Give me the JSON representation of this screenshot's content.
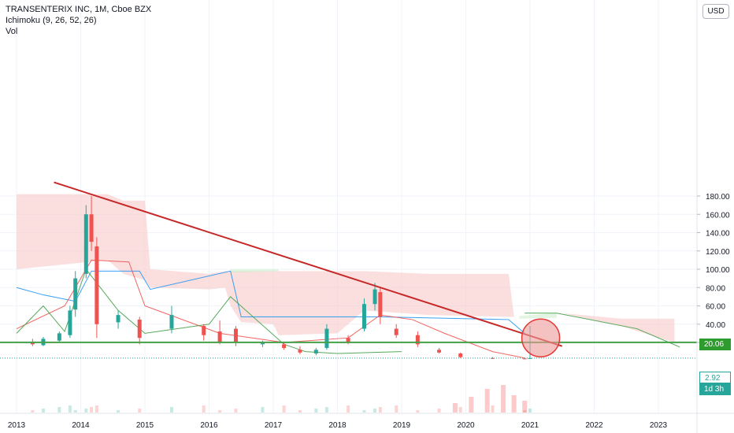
{
  "header": {
    "symbol_line": "TRANSENTERIX INC, 1M, Cboe BZX",
    "indicator_line": "Ichimoku (9, 26, 52, 26)",
    "volume_line": "Vol"
  },
  "currency_button": "USD",
  "price_tags": {
    "horizontal_line": "20.06",
    "last_price": "2.92",
    "countdown": "1d 3h"
  },
  "colors": {
    "up": "#26a69a",
    "down": "#ef5350",
    "conversion_line": "#2196f3",
    "base_line": "#ef5350",
    "lagging_span": "#43a047",
    "cloud_bear": "#f7c5c5",
    "cloud_bull": "#c8ecc8",
    "trendline": "#c62828",
    "support_line": "#43a047",
    "circle": "#ef9a9a"
  },
  "chart_data": {
    "type": "candlestick",
    "interval": "1M",
    "ylim": [
      0,
      200
    ],
    "y_ticks": [
      "180.00",
      "160.00",
      "140.00",
      "120.00",
      "100.00",
      "80.00",
      "60.00",
      "40.00",
      "20.00"
    ],
    "x_ticks": [
      "2013",
      "2014",
      "2015",
      "2016",
      "2017",
      "2018",
      "2019",
      "2020",
      "2021",
      "2022",
      "2023"
    ],
    "candles": [
      {
        "date": "2013-04",
        "o": 20,
        "h": 24,
        "l": 16,
        "c": 18
      },
      {
        "date": "2013-06",
        "o": 17,
        "h": 26,
        "l": 16,
        "c": 24
      },
      {
        "date": "2013-09",
        "o": 22,
        "h": 32,
        "l": 20,
        "c": 30
      },
      {
        "date": "2013-11",
        "o": 28,
        "h": 60,
        "l": 25,
        "c": 55
      },
      {
        "date": "2013-12",
        "o": 56,
        "h": 98,
        "l": 48,
        "c": 90
      },
      {
        "date": "2014-02",
        "o": 95,
        "h": 170,
        "l": 90,
        "c": 160
      },
      {
        "date": "2014-03",
        "o": 160,
        "h": 180,
        "l": 120,
        "c": 130
      },
      {
        "date": "2014-04",
        "o": 125,
        "h": 135,
        "l": 25,
        "c": 40
      },
      {
        "date": "2014-08",
        "o": 42,
        "h": 55,
        "l": 35,
        "c": 50
      },
      {
        "date": "2014-12",
        "o": 45,
        "h": 48,
        "l": 18,
        "c": 25
      },
      {
        "date": "2015-06",
        "o": 35,
        "h": 60,
        "l": 30,
        "c": 50
      },
      {
        "date": "2015-12",
        "o": 38,
        "h": 40,
        "l": 22,
        "c": 28
      },
      {
        "date": "2016-03",
        "o": 32,
        "h": 44,
        "l": 18,
        "c": 20
      },
      {
        "date": "2016-06",
        "o": 35,
        "h": 38,
        "l": 16,
        "c": 20
      },
      {
        "date": "2016-11",
        "o": 18,
        "h": 22,
        "l": 15,
        "c": 20
      },
      {
        "date": "2017-03",
        "o": 18,
        "h": 20,
        "l": 12,
        "c": 14
      },
      {
        "date": "2017-06",
        "o": 12,
        "h": 16,
        "l": 7,
        "c": 9
      },
      {
        "date": "2017-09",
        "o": 8,
        "h": 14,
        "l": 6,
        "c": 12
      },
      {
        "date": "2017-11",
        "o": 14,
        "h": 40,
        "l": 12,
        "c": 35
      },
      {
        "date": "2018-03",
        "o": 25,
        "h": 28,
        "l": 18,
        "c": 20
      },
      {
        "date": "2018-06",
        "o": 35,
        "h": 68,
        "l": 32,
        "c": 62
      },
      {
        "date": "2018-08",
        "o": 62,
        "h": 85,
        "l": 55,
        "c": 78
      },
      {
        "date": "2018-09",
        "o": 75,
        "h": 80,
        "l": 40,
        "c": 48
      },
      {
        "date": "2018-12",
        "o": 35,
        "h": 40,
        "l": 25,
        "c": 28
      },
      {
        "date": "2019-04",
        "o": 28,
        "h": 32,
        "l": 15,
        "c": 18
      },
      {
        "date": "2019-08",
        "o": 12,
        "h": 14,
        "l": 8,
        "c": 9
      },
      {
        "date": "2019-12",
        "o": 8,
        "h": 9,
        "l": 3,
        "c": 4
      },
      {
        "date": "2020-06",
        "o": 3,
        "h": 4,
        "l": 2,
        "c": 2.5
      },
      {
        "date": "2020-12",
        "o": 2.5,
        "h": 3,
        "l": 2,
        "c": 2.2
      },
      {
        "date": "2021-01",
        "o": 2.3,
        "h": 38,
        "l": 2.2,
        "c": 2.92
      }
    ],
    "trendline": {
      "from": {
        "date": "2013-08",
        "price": 195
      },
      "to": {
        "date": "2021-07",
        "price": 16
      }
    },
    "horizontal_line": 20.06,
    "last_price": 2.92
  }
}
